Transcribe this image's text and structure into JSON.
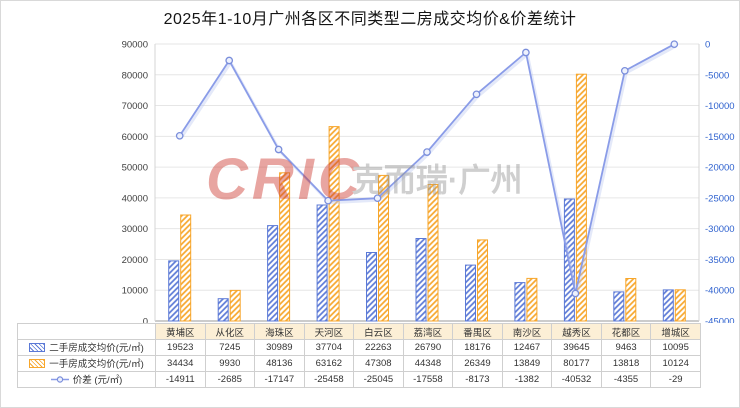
{
  "title": "2025年1-10月广州各区不同类型二房成交均价&价差统计",
  "watermark": {
    "main": "CRIC",
    "sub": "克而瑞·广州"
  },
  "chart_data": {
    "type": "combo-bar-line",
    "categories": [
      "黄埔区",
      "从化区",
      "海珠区",
      "天河区",
      "白云区",
      "荔湾区",
      "番禺区",
      "南沙区",
      "越秀区",
      "花都区",
      "增城区"
    ],
    "series": [
      {
        "name": "二手房成交均价(元/㎡)",
        "type": "bar",
        "axis": "left",
        "color": "#5b79d6",
        "values": [
          19523,
          7245,
          30989,
          37704,
          22263,
          26790,
          18176,
          12467,
          39645,
          9463,
          10095
        ]
      },
      {
        "name": "一手房成交均价(元/㎡)",
        "type": "bar",
        "axis": "left",
        "color": "#f7a62b",
        "values": [
          34434,
          9930,
          48136,
          63162,
          47308,
          44348,
          26349,
          13849,
          80177,
          13818,
          10124
        ]
      },
      {
        "name": "价差 (元/㎡)",
        "type": "line",
        "axis": "right",
        "color": "#8a9ce8",
        "values": [
          -14911,
          -2685,
          -17147,
          -25458,
          -25045,
          -17558,
          -8173,
          -1382,
          -40532,
          -4355,
          -29
        ]
      }
    ],
    "left_axis": {
      "min": 0,
      "max": 90000,
      "step": 10000,
      "label_color": "#404040"
    },
    "right_axis": {
      "min": -45000,
      "max": 0,
      "step": 5000,
      "label_color": "#2f62cf"
    },
    "grid": true,
    "legend_position": "table-left",
    "header_bg": "#fcefd6",
    "marker_fill": "#edf1fd",
    "marker_stroke": "#7a8edb"
  }
}
